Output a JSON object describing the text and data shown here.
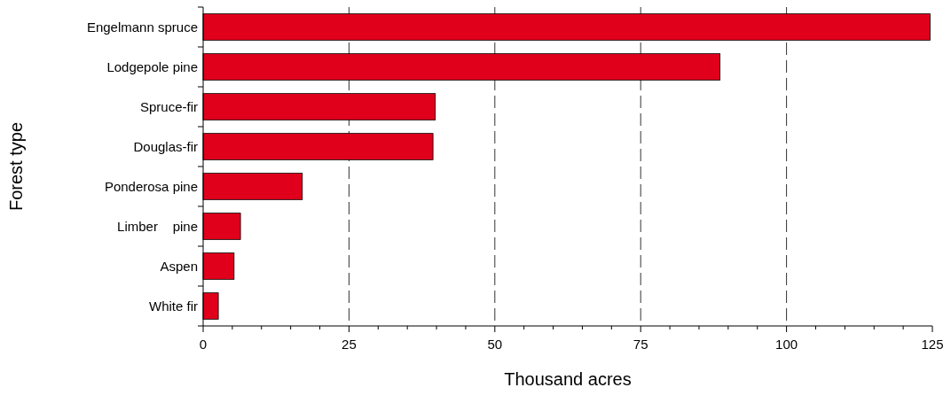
{
  "chart_data": {
    "type": "bar",
    "orientation": "horizontal",
    "xlabel": "Thousand acres",
    "ylabel": "Forest type",
    "categories": [
      "Engelmann spruce",
      "Lodgepole pine",
      "Spruce-fir",
      "Douglas-fir",
      "Ponderosa pine",
      "Limber    pine",
      "Aspen",
      "White fir"
    ],
    "values": [
      124.6,
      88.6,
      39.8,
      39.4,
      17.0,
      6.4,
      5.3,
      2.6
    ],
    "color": "#e0001b",
    "xlim": [
      0,
      125
    ],
    "xticks": [
      0,
      {
        "value": 5,
        "label": null
      },
      {
        "value": 10,
        "label": null
      },
      {
        "value": 15,
        "label": null
      },
      {
        "value": 20,
        "label": null
      },
      25,
      {
        "value": 30,
        "label": null
      },
      {
        "value": 35,
        "label": null
      },
      {
        "value": 40,
        "label": null
      },
      {
        "value": 45,
        "label": null
      },
      50,
      {
        "value": 55,
        "label": null
      },
      {
        "value": 60,
        "label": null
      },
      {
        "value": 65,
        "label": null
      },
      {
        "value": 70,
        "label": null
      },
      75,
      {
        "value": 80,
        "label": null
      },
      {
        "value": 85,
        "label": null
      },
      {
        "value": 90,
        "label": null
      },
      {
        "value": 95,
        "label": null
      },
      100,
      {
        "value": 105,
        "label": null
      },
      {
        "value": 110,
        "label": null
      },
      {
        "value": 115,
        "label": null
      },
      {
        "value": 120,
        "label": null
      },
      125
    ],
    "grid": "x",
    "line_style": "dashed"
  }
}
